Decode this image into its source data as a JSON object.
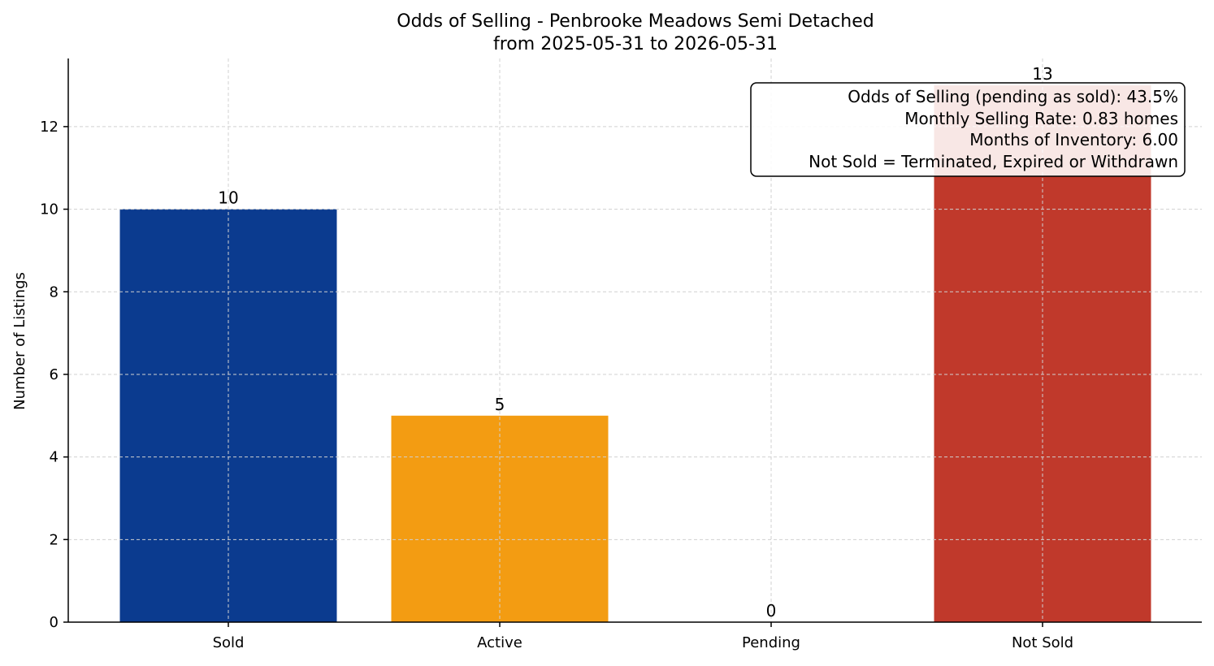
{
  "chart_data": {
    "type": "bar",
    "title": "Odds of Selling - Penbrooke Meadows Semi Detached",
    "subtitle": "from 2025-05-31 to 2026-05-31",
    "xlabel": "",
    "ylabel": "Number of Listings",
    "categories": [
      "Sold",
      "Active",
      "Pending",
      "Not Sold"
    ],
    "values": [
      10,
      5,
      0,
      13
    ],
    "colors": [
      "#0b3b8f",
      "#f39c12",
      "#7f8c8d",
      "#c0392b"
    ],
    "ylim": [
      0,
      13.65
    ],
    "yticks": [
      0,
      2,
      4,
      6,
      8,
      10,
      12
    ],
    "grid": true,
    "info_box": {
      "placement": "top-right",
      "lines": [
        "Odds of Selling (pending as sold): 43.5%",
        "Monthly Selling Rate: 0.83 homes",
        "Months of Inventory: 6.00",
        "Not Sold = Terminated, Expired or Withdrawn"
      ]
    }
  }
}
